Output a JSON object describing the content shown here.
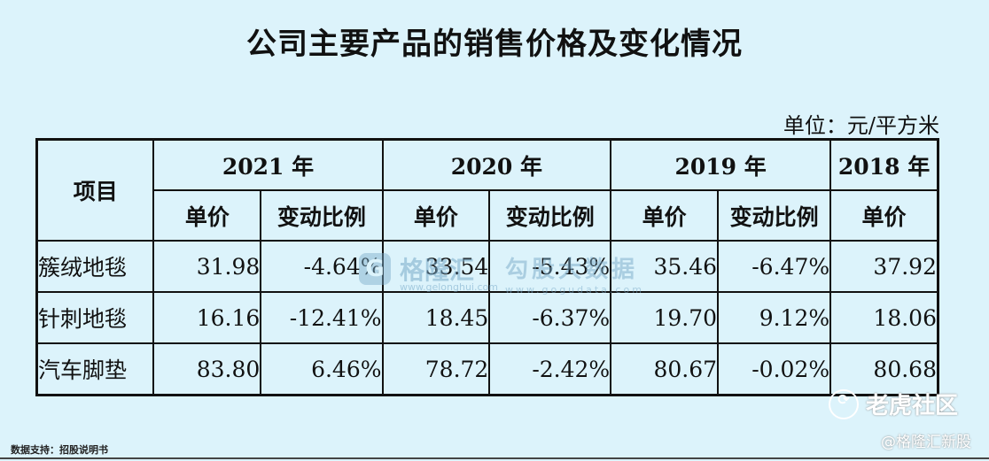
{
  "title": "公司主要产品的销售价格及变化情况",
  "unit": "单位：元/平方米",
  "table": {
    "item_header": "项目",
    "years": [
      "2021 年",
      "2020 年",
      "2019 年",
      "2018 年"
    ],
    "sub_headers": {
      "price": "单价",
      "change": "变动比例"
    },
    "rows": [
      {
        "name": "簇绒地毯",
        "p2021": "31.98",
        "c2021": "-4.64%",
        "p2020": "33.54",
        "c2020": "-5.43%",
        "p2019": "35.46",
        "c2019": "-6.47%",
        "p2018": "37.92"
      },
      {
        "name": "针刺地毯",
        "p2021": "16.16",
        "c2021": "-12.41%",
        "p2020": "18.45",
        "c2020": "-6.37%",
        "p2019": "19.70",
        "c2019": "9.12%",
        "p2018": "18.06"
      },
      {
        "name": "汽车脚垫",
        "p2021": "83.80",
        "c2021": "6.46%",
        "p2020": "78.72",
        "c2020": "-2.42%",
        "p2019": "80.67",
        "c2019": "-0.02%",
        "p2018": "80.68"
      }
    ]
  },
  "watermarks": {
    "gelonghui": "格隆汇",
    "gelonghui_url": "www.gelonghui.com",
    "gogudata": "勾股大数据",
    "gogudata_url": "www.gogudata.com",
    "tiger": "老虎社区",
    "tiger_icon": "tiger-icon",
    "credit": "@格隆汇新股"
  },
  "source": "数据支持：招股说明书"
}
